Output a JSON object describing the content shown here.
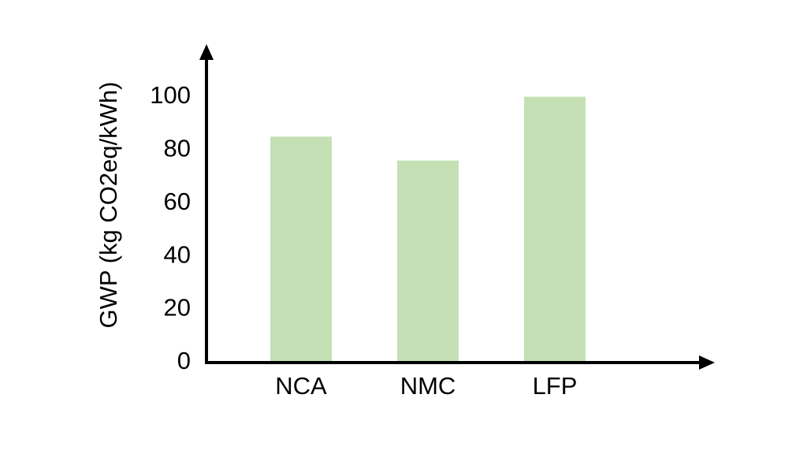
{
  "chart_data": {
    "type": "bar",
    "y_label": "GWP (kg CO2eq/kWh)",
    "categories": [
      "NCA",
      "NMC",
      "LFP"
    ],
    "values": [
      85,
      76,
      100
    ],
    "color": "#c5e0b4",
    "ylim": [
      0,
      118
    ],
    "yticks": [
      0,
      20,
      40,
      60,
      80,
      100
    ],
    "grid": false
  }
}
